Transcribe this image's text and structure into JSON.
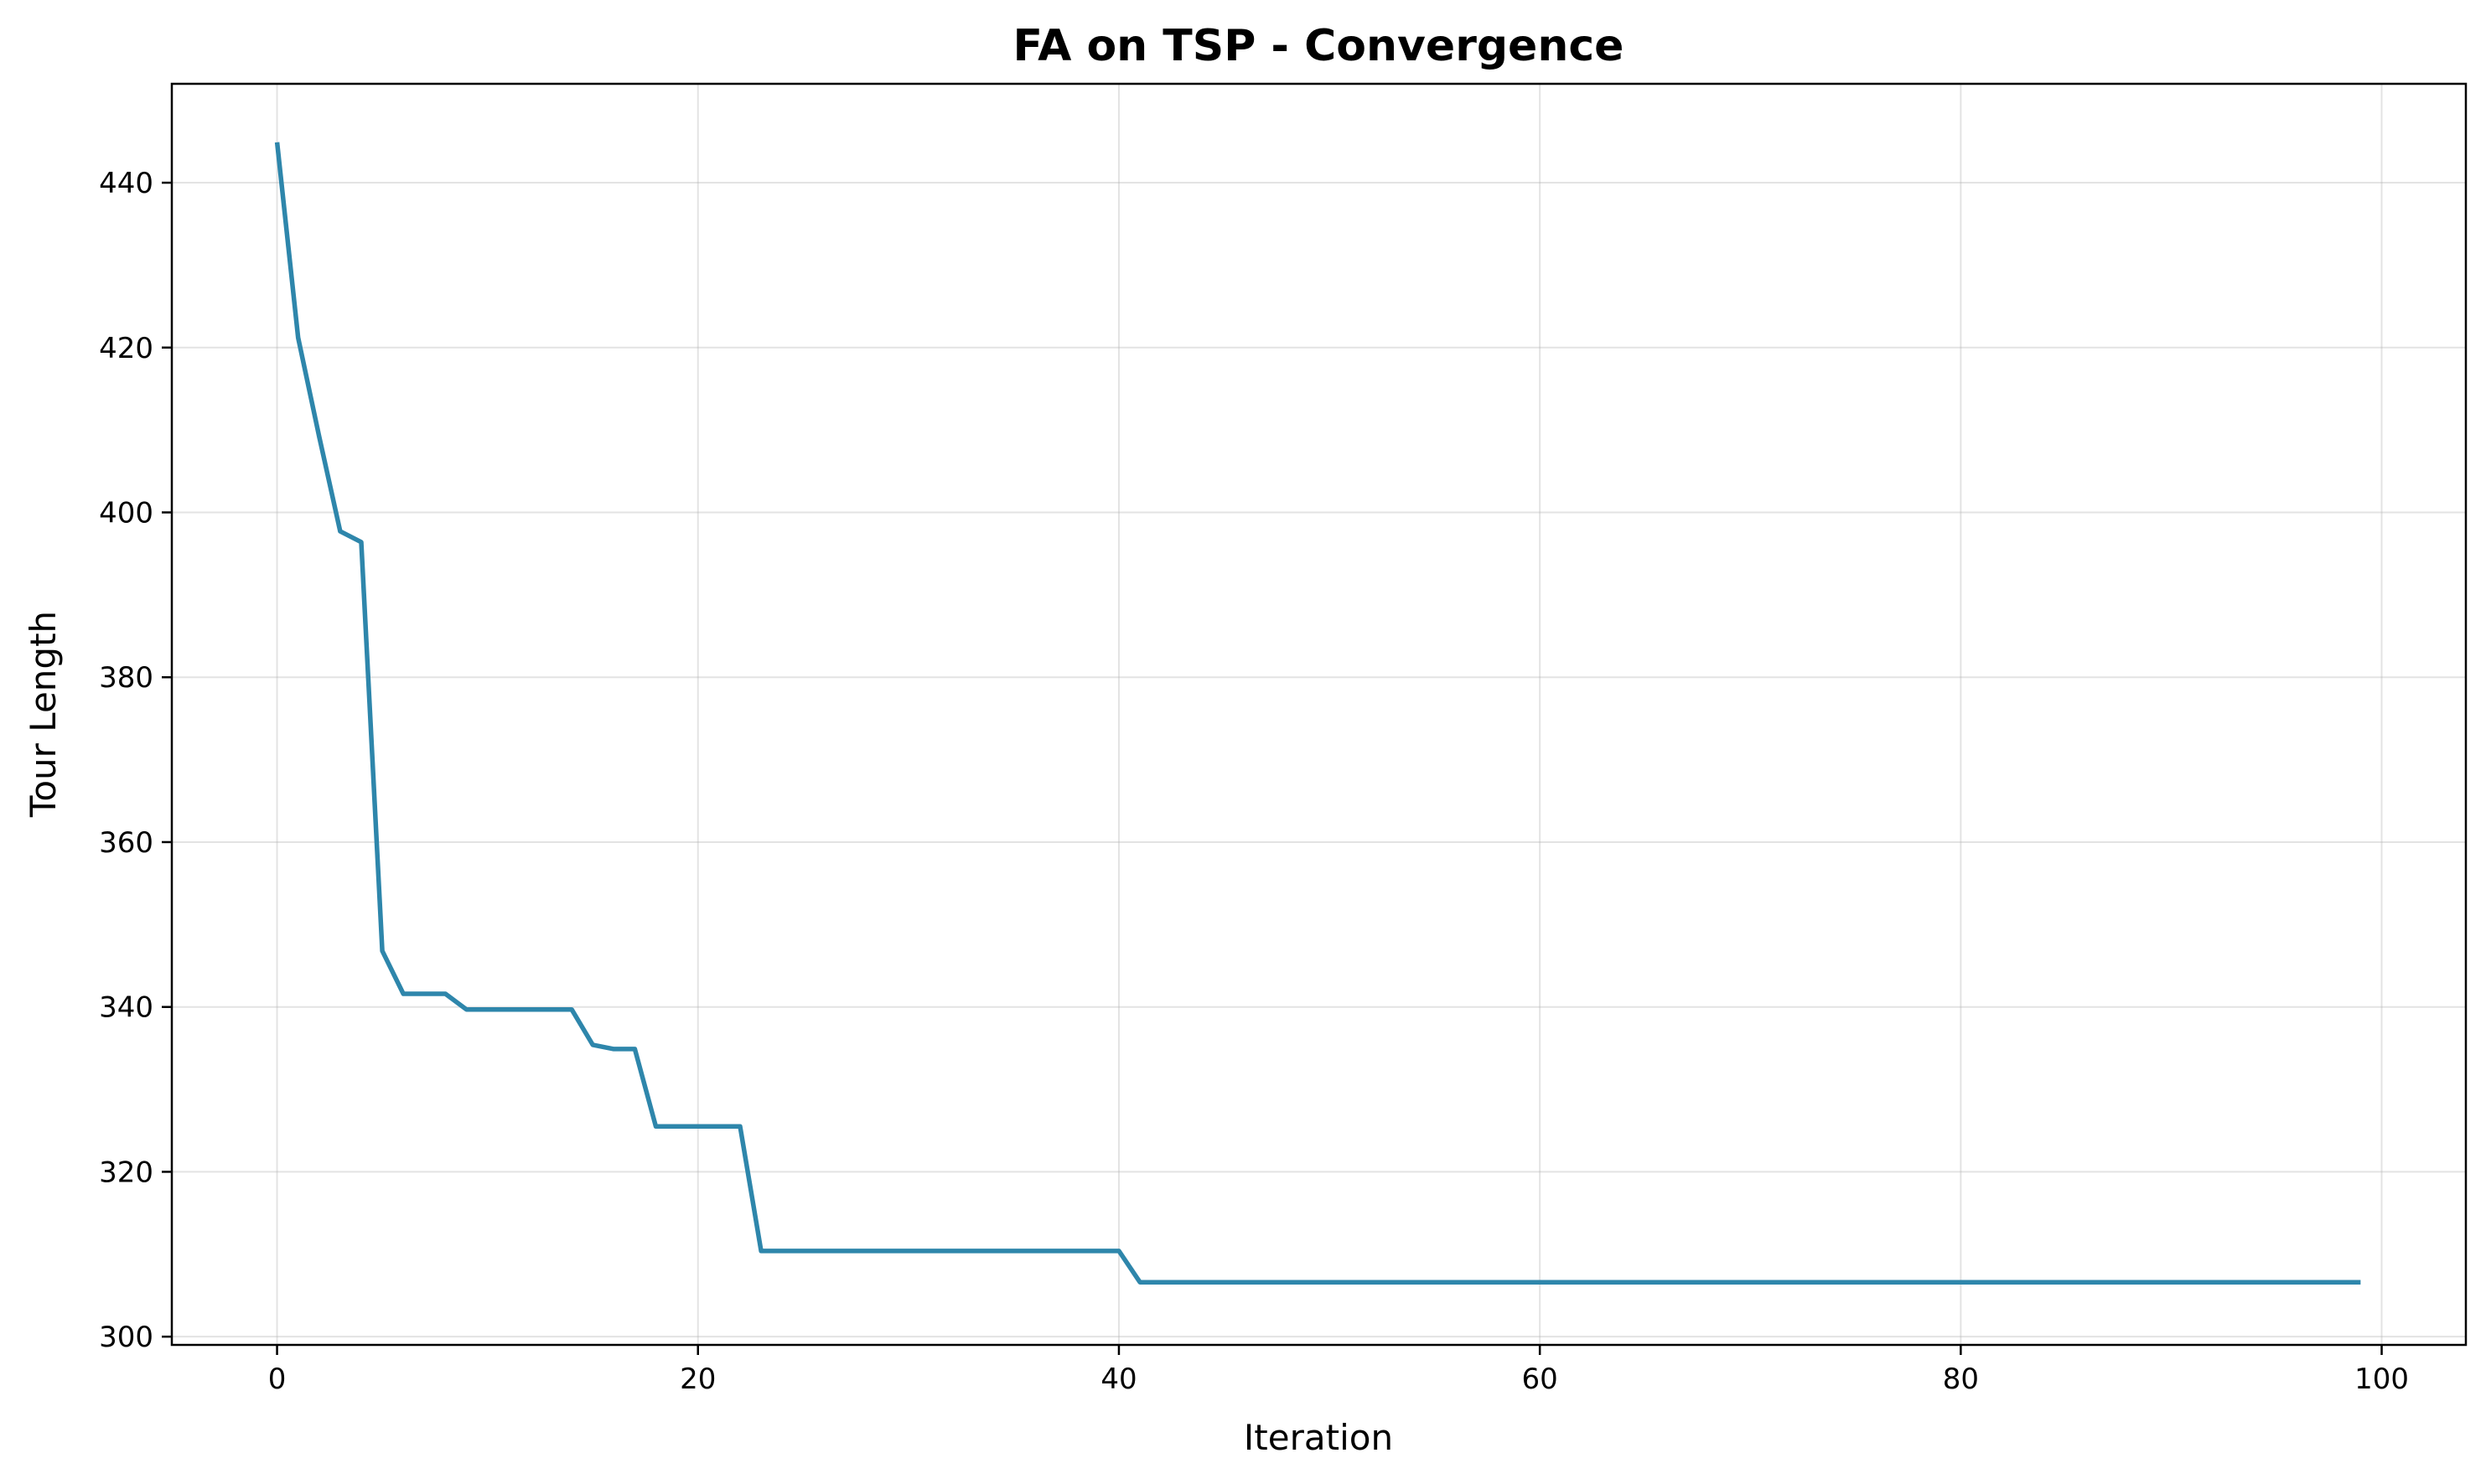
{
  "chart_data": {
    "type": "line",
    "title": "FA on TSP - Convergence",
    "xlabel": "Iteration",
    "ylabel": "Tour Length",
    "xlim": [
      -5,
      104
    ],
    "ylim": [
      299,
      452
    ],
    "xticks": [
      0,
      20,
      40,
      60,
      80,
      100
    ],
    "yticks": [
      300,
      320,
      340,
      360,
      380,
      400,
      420,
      440
    ],
    "grid": true,
    "line_color": "#2e86ab",
    "series": [
      {
        "x": [
          0,
          1,
          2,
          3,
          4,
          5,
          6,
          7,
          8,
          9,
          10,
          11,
          12,
          13,
          14,
          15,
          16,
          17,
          18,
          19,
          20,
          21,
          22,
          23,
          24,
          25,
          26,
          27,
          28,
          29,
          30,
          31,
          32,
          33,
          34,
          35,
          36,
          37,
          38,
          39,
          40,
          41,
          42,
          43,
          44,
          45,
          46,
          47,
          48,
          49,
          50,
          51,
          52,
          53,
          54,
          55,
          56,
          57,
          58,
          59,
          60,
          61,
          62,
          63,
          64,
          65,
          66,
          67,
          68,
          69,
          70,
          71,
          72,
          73,
          74,
          75,
          76,
          77,
          78,
          79,
          80,
          81,
          82,
          83,
          84,
          85,
          86,
          87,
          88,
          89,
          90,
          91,
          92,
          93,
          94,
          95,
          96,
          97,
          98,
          99
        ],
        "values": [
          444.9,
          421.2,
          409.2,
          397.7,
          396.4,
          346.8,
          341.6,
          341.6,
          341.6,
          339.7,
          339.7,
          339.7,
          339.7,
          339.7,
          339.7,
          335.4,
          334.9,
          334.9,
          325.5,
          325.5,
          325.5,
          325.5,
          325.5,
          310.4,
          310.4,
          310.4,
          310.4,
          310.4,
          310.4,
          310.4,
          310.4,
          310.4,
          310.4,
          310.4,
          310.4,
          310.4,
          310.4,
          310.4,
          310.4,
          310.4,
          310.4,
          306.6,
          306.6,
          306.6,
          306.6,
          306.6,
          306.6,
          306.6,
          306.6,
          306.6,
          306.6,
          306.6,
          306.6,
          306.6,
          306.6,
          306.6,
          306.6,
          306.6,
          306.6,
          306.6,
          306.6,
          306.6,
          306.6,
          306.6,
          306.6,
          306.6,
          306.6,
          306.6,
          306.6,
          306.6,
          306.6,
          306.6,
          306.6,
          306.6,
          306.6,
          306.6,
          306.6,
          306.6,
          306.6,
          306.6,
          306.6,
          306.6,
          306.6,
          306.6,
          306.6,
          306.6,
          306.6,
          306.6,
          306.6,
          306.6,
          306.6,
          306.6,
          306.6,
          306.6,
          306.6,
          306.6,
          306.6,
          306.6,
          306.6,
          306.6
        ]
      }
    ]
  }
}
